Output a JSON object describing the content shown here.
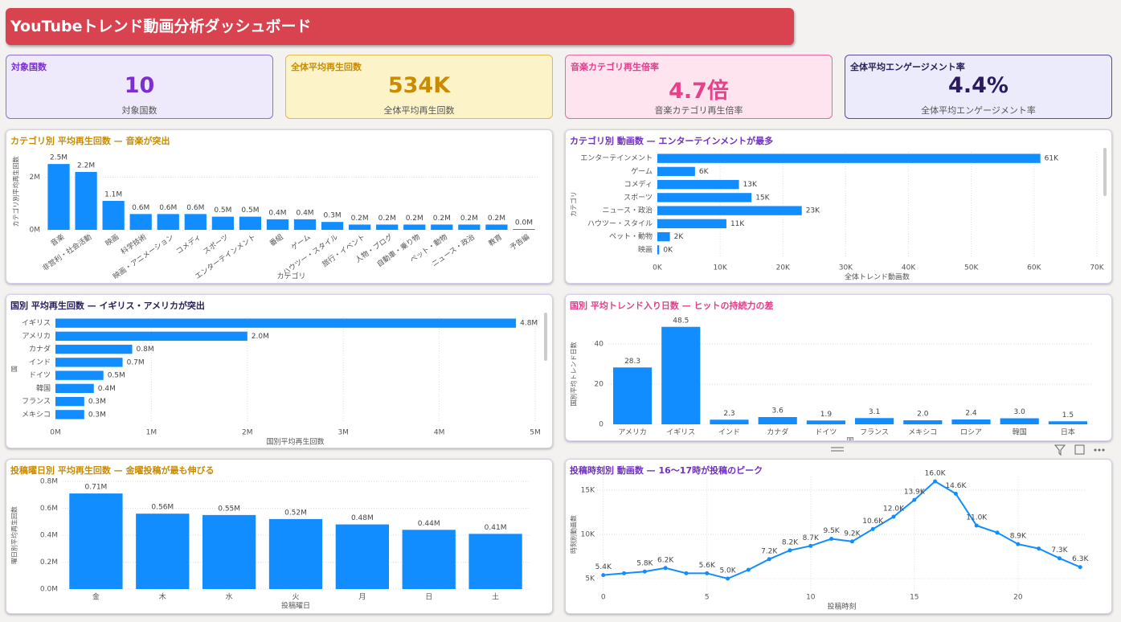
{
  "header": {
    "title": "YouTubeトレンド動画分析ダッシュボード"
  },
  "kpis": [
    {
      "title": "対象国数",
      "value": "10",
      "subtitle": "対象国数"
    },
    {
      "title": "全体平均再生回数",
      "value": "534K",
      "subtitle": "全体平均再生回数"
    },
    {
      "title": "音楽カテゴリ再生倍率",
      "value": "4.7倍",
      "subtitle": "音楽カテゴリ再生倍率"
    },
    {
      "title": "全体平均エンゲージメント率",
      "value": "4.4%",
      "subtitle": "全体平均エンゲージメント率"
    }
  ],
  "chart_data": [
    {
      "type": "bar",
      "title": "カテゴリ別 平均再生回数 — 音楽が突出",
      "title_color": "#c98b00",
      "color": "#118dff",
      "x_label": "カテゴリ",
      "y_label": "カテゴリ別平均再生回数",
      "categories": [
        "音楽",
        "非営利・社会活動",
        "映画",
        "科学技術",
        "映画・アニメーション",
        "コメディ",
        "スポーツ",
        "エンターテインメント",
        "番組",
        "ゲーム",
        "ハウツー・スタイル",
        "旅行・イベント",
        "人物・ブログ",
        "自動車・乗り物",
        "ペット・動物",
        "ニュース・政治",
        "教育",
        "予告編"
      ],
      "values": [
        2500000,
        2200000,
        1100000,
        600000,
        600000,
        600000,
        500000,
        500000,
        400000,
        400000,
        300000,
        200000,
        200000,
        200000,
        200000,
        200000,
        200000,
        30000
      ],
      "value_labels": [
        "2.5M",
        "2.2M",
        "1.1M",
        "0.6M",
        "0.6M",
        "0.6M",
        "0.5M",
        "0.5M",
        "0.4M",
        "0.4M",
        "0.3M",
        "0.2M",
        "0.2M",
        "0.2M",
        "0.2M",
        "0.2M",
        "0.2M",
        "0.0M"
      ],
      "ylim": [
        0,
        2900000
      ],
      "yticks": [
        {
          "value": 0,
          "label": "0M"
        },
        {
          "value": 2000000,
          "label": "2M"
        }
      ],
      "grid": true
    },
    {
      "type": "bar",
      "orientation": "horizontal",
      "title": "カテゴリ別 動画数 — エンターテインメントが最多",
      "title_color": "#7030c0",
      "color": "#118dff",
      "x_label": "全体トレンド動画数",
      "y_label": "カテゴリ",
      "categories": [
        "エンターテインメント",
        "ゲーム",
        "コメディ",
        "スポーツ",
        "ニュース・政治",
        "ハウツー・スタイル",
        "ペット・動物",
        "映画"
      ],
      "values": [
        61000,
        6000,
        13000,
        15000,
        23000,
        11000,
        2000,
        300
      ],
      "value_labels": [
        "61K",
        "6K",
        "13K",
        "15K",
        "23K",
        "11K",
        "2K",
        "0K"
      ],
      "xlim": [
        0,
        70000
      ],
      "xticks": [
        {
          "value": 0,
          "label": "0K"
        },
        {
          "value": 10000,
          "label": "10K"
        },
        {
          "value": 20000,
          "label": "20K"
        },
        {
          "value": 30000,
          "label": "30K"
        },
        {
          "value": 40000,
          "label": "40K"
        },
        {
          "value": 50000,
          "label": "50K"
        },
        {
          "value": 60000,
          "label": "60K"
        },
        {
          "value": 70000,
          "label": "70K"
        }
      ],
      "grid": true
    },
    {
      "type": "bar",
      "orientation": "horizontal",
      "title": "国別 平均再生回数 — イギリス・アメリカが突出",
      "title_color": "#28205a",
      "color": "#118dff",
      "x_label": "国別平均再生回数",
      "y_label": "国",
      "categories": [
        "イギリス",
        "アメリカ",
        "カナダ",
        "インド",
        "ドイツ",
        "韓国",
        "フランス",
        "メキシコ"
      ],
      "values": [
        4800000,
        2000000,
        800000,
        700000,
        500000,
        400000,
        300000,
        300000
      ],
      "value_labels": [
        "4.8M",
        "2.0M",
        "0.8M",
        "0.7M",
        "0.5M",
        "0.4M",
        "0.3M",
        "0.3M"
      ],
      "xlim": [
        0,
        5000000
      ],
      "xticks": [
        {
          "value": 0,
          "label": "0M"
        },
        {
          "value": 1000000,
          "label": "1M"
        },
        {
          "value": 2000000,
          "label": "2M"
        },
        {
          "value": 3000000,
          "label": "3M"
        },
        {
          "value": 4000000,
          "label": "4M"
        },
        {
          "value": 5000000,
          "label": "5M"
        }
      ],
      "grid": true
    },
    {
      "type": "bar",
      "title": "国別 平均トレンド入り日数 — ヒットの持続力の差",
      "title_color": "#e0408a",
      "color": "#118dff",
      "x_label": "国",
      "y_label": "国別平均トレンド日数",
      "categories": [
        "アメリカ",
        "イギリス",
        "インド",
        "カナダ",
        "ドイツ",
        "フランス",
        "メキシコ",
        "ロシア",
        "韓国",
        "日本"
      ],
      "values": [
        28.3,
        48.5,
        2.3,
        3.6,
        1.9,
        3.1,
        2.0,
        2.4,
        3.0,
        1.5
      ],
      "value_labels": [
        "28.3",
        "48.5",
        "2.3",
        "3.6",
        "1.9",
        "3.1",
        "2.0",
        "2.4",
        "3.0",
        "1.5"
      ],
      "ylim": [
        0,
        50
      ],
      "yticks": [
        0,
        20,
        40
      ],
      "grid": true
    },
    {
      "type": "bar",
      "title": "投稿曜日別 平均再生回数 — 金曜投稿が最も伸びる",
      "title_color": "#c98b00",
      "color": "#118dff",
      "x_label": "投稿曜日",
      "y_label": "曜日別平均再生回数",
      "categories": [
        "金",
        "木",
        "水",
        "火",
        "月",
        "日",
        "土"
      ],
      "values": [
        710000,
        560000,
        550000,
        520000,
        480000,
        440000,
        410000
      ],
      "value_labels": [
        "0.71M",
        "0.56M",
        "0.55M",
        "0.52M",
        "0.48M",
        "0.44M",
        "0.41M"
      ],
      "ylim": [
        0,
        800000
      ],
      "yticks": [
        {
          "value": 0,
          "label": "0.0M"
        },
        {
          "value": 200000,
          "label": "0.2M"
        },
        {
          "value": 400000,
          "label": "0.4M"
        },
        {
          "value": 600000,
          "label": "0.6M"
        },
        {
          "value": 800000,
          "label": "0.8M"
        }
      ],
      "grid": true
    },
    {
      "type": "line",
      "title": "投稿時刻別 動画数 — 16〜17時が投稿のピーク",
      "title_color": "#7030c0",
      "color": "#118dff",
      "x_label": "投稿時刻",
      "y_label": "時刻別動画数",
      "x": [
        0,
        1,
        2,
        3,
        4,
        5,
        6,
        7,
        8,
        9,
        10,
        11,
        12,
        13,
        14,
        15,
        16,
        17,
        18,
        19,
        20,
        21,
        22,
        23
      ],
      "values": [
        5400,
        5600,
        5800,
        6200,
        5600,
        5600,
        5000,
        6000,
        7200,
        8200,
        8700,
        9500,
        9200,
        10600,
        12000,
        13900,
        16000,
        14600,
        11000,
        10200,
        8900,
        8400,
        7300,
        6300
      ],
      "value_labels": [
        "5.4K",
        null,
        "5.8K",
        "6.2K",
        null,
        "5.6K",
        "5.0K",
        null,
        "7.2K",
        "8.2K",
        "8.7K",
        "9.5K",
        "9.2K",
        "10.6K",
        "12.0K",
        "13.9K",
        "16.0K",
        "14.6K",
        "11.0K",
        null,
        "8.9K",
        null,
        "7.3K",
        "6.3K"
      ],
      "xlim": [
        -0.3,
        23.3
      ],
      "xticks": [
        0,
        5,
        10,
        15,
        20
      ],
      "ylim": [
        3500,
        16500
      ],
      "yticks": [
        {
          "value": 5000,
          "label": "5K"
        },
        {
          "value": 10000,
          "label": "10K"
        },
        {
          "value": 15000,
          "label": "15K"
        }
      ],
      "grid": true
    }
  ]
}
